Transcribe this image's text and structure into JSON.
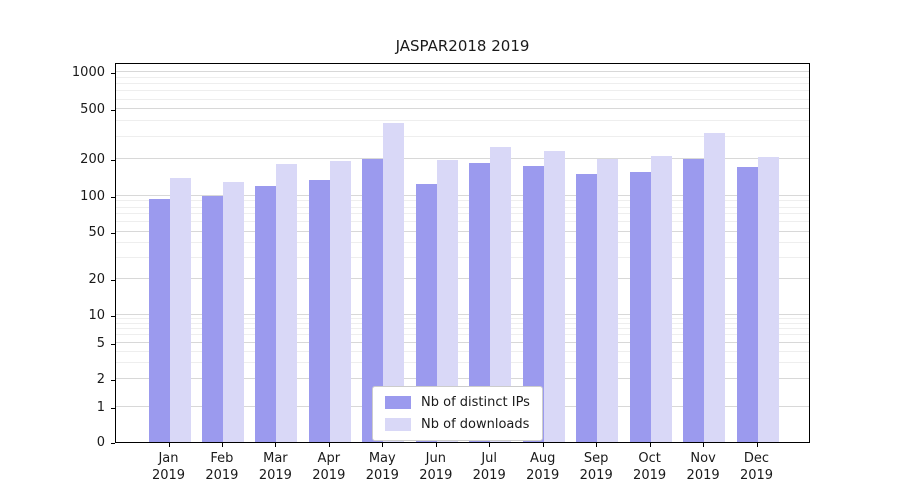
{
  "chart_data": {
    "type": "bar",
    "title": "JASPAR2018 2019",
    "yscale": "symlog",
    "grid": true,
    "ylim": [
      0,
      1000
    ],
    "yticks": [
      0,
      1,
      2,
      5,
      10,
      20,
      50,
      100,
      200,
      500,
      1000
    ],
    "minor_gridline_values": [
      3,
      4,
      6,
      7,
      8,
      9,
      30,
      40,
      60,
      70,
      80,
      90,
      300,
      400,
      600,
      700,
      800,
      900
    ],
    "x_year": "2019",
    "categories": [
      "Jan",
      "Feb",
      "Mar",
      "Apr",
      "May",
      "Jun",
      "Jul",
      "Aug",
      "Sep",
      "Oct",
      "Nov",
      "Dec"
    ],
    "series": [
      {
        "name": "Nb of distinct IPs",
        "color": "#9b9aee",
        "values": [
          95,
          100,
          120,
          135,
          200,
          125,
          185,
          175,
          150,
          155,
          200,
          170
        ]
      },
      {
        "name": "Nb of downloads",
        "color": "#d9d8f7",
        "values": [
          140,
          130,
          180,
          190,
          390,
          195,
          250,
          230,
          200,
          210,
          320,
          205
        ]
      }
    ],
    "legend_position": "lower center"
  }
}
